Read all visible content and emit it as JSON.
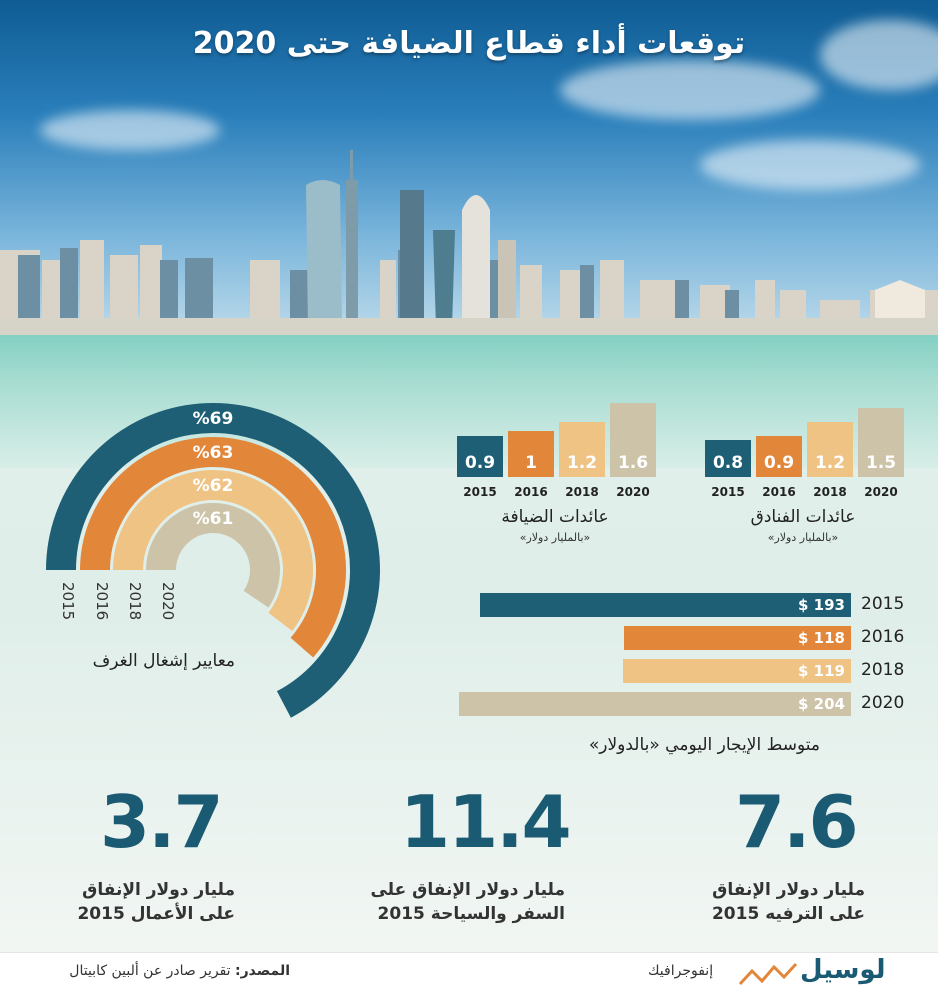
{
  "title": "توقعات أداء قطاع الضيافة حتى 2020",
  "colors": {
    "teal": "#1e5f75",
    "orange": "#e2863a",
    "sand": "#eec383",
    "grey": "#ccc3a8"
  },
  "chart_data": [
    {
      "type": "bar",
      "title": "عائدات الضيافة",
      "subtitle": "«بالمليار دولار»",
      "categories": [
        "2015",
        "2016",
        "2018",
        "2020"
      ],
      "values": [
        0.9,
        1,
        1.2,
        1.6
      ],
      "value_labels": [
        "0.9",
        "1",
        "1.2",
        "1.6"
      ]
    },
    {
      "type": "bar",
      "title": "عائدات الفنادق",
      "subtitle": "«بالمليار دولار»",
      "categories": [
        "2015",
        "2016",
        "2018",
        "2020"
      ],
      "values": [
        0.8,
        0.9,
        1.2,
        1.5
      ],
      "value_labels": [
        "0.8",
        "0.9",
        "1.2",
        "1.5"
      ]
    },
    {
      "type": "bar",
      "orientation": "horizontal",
      "title": "متوسط الإيجار اليومي «بالدولار»",
      "categories": [
        "2015",
        "2016",
        "2018",
        "2020"
      ],
      "values": [
        193,
        118,
        119,
        204
      ],
      "value_labels": [
        "$ 193",
        "$ 118",
        "$ 119",
        "$ 204"
      ]
    },
    {
      "type": "radial-bar",
      "title": "معايير إشغال الغرف",
      "categories": [
        "2015",
        "2016",
        "2018",
        "2020"
      ],
      "values": [
        69,
        63,
        62,
        61
      ],
      "value_labels": [
        "%69",
        "%63",
        "%62",
        "%61"
      ]
    }
  ],
  "stats": [
    {
      "value": "7.6",
      "line1": "مليار دولار الإنفاق",
      "line2": "على الترفيه 2015"
    },
    {
      "value": "11.4",
      "line1": "مليار دولار الإنفاق على",
      "line2": "السفر والسياحة 2015"
    },
    {
      "value": "3.7",
      "line1": "مليار دولار الإنفاق",
      "line2": "على الأعمال 2015"
    }
  ],
  "footer": {
    "source_label": "المصدر:",
    "source_text": "تقرير صادر عن ألبين كابيتال",
    "brand": "لوسيل",
    "section": "إنفوجرافيك"
  }
}
